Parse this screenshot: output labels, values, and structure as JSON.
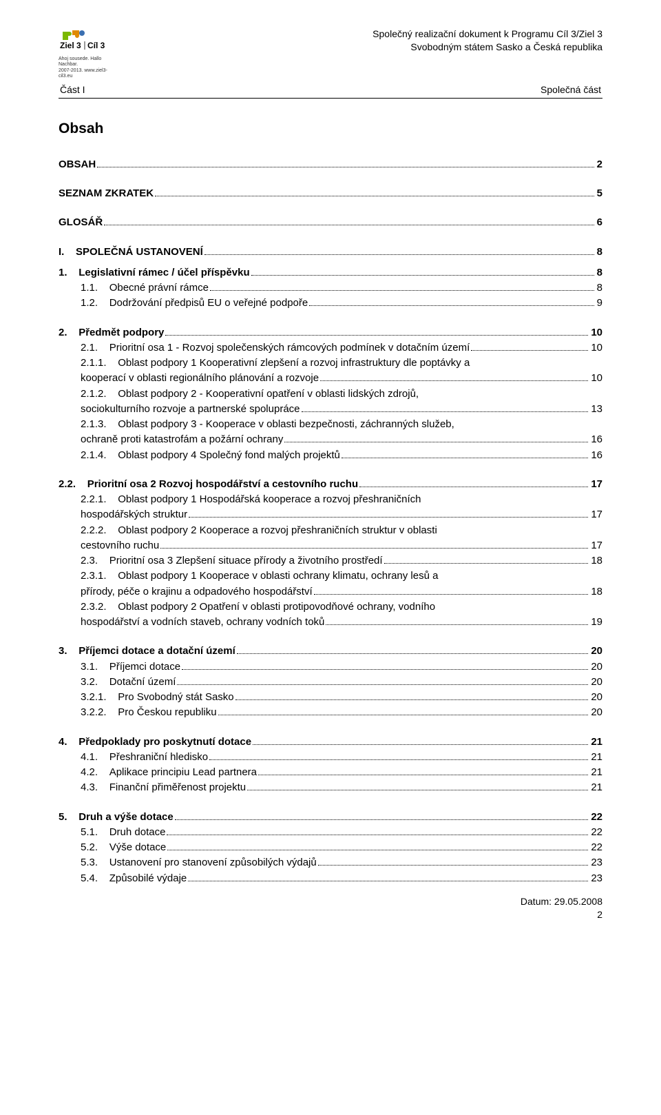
{
  "header": {
    "line1": "Společný realizační dokument k Programu Cíl 3/Ziel 3",
    "line2": "Svobodným státem Sasko  a Česká republika",
    "left": "Část I",
    "right": "Společná část",
    "logo_sub1": "Ahoj sousede. Hallo Nachbar.",
    "logo_sub2": "2007-2013. www.ziel3-cil3.eu",
    "logo_text_ziel": "Ziel 3",
    "logo_text_cil": "Cíl 3"
  },
  "title": "Obsah",
  "toc": [
    {
      "type": "row",
      "bold": true,
      "indent": 0,
      "num": "OBSAH",
      "title": "",
      "page": "2"
    },
    {
      "type": "gap",
      "size": "md"
    },
    {
      "type": "row",
      "bold": true,
      "indent": 0,
      "num": "SEZNAM ZKRATEK",
      "title": "",
      "page": "5"
    },
    {
      "type": "gap",
      "size": "md"
    },
    {
      "type": "row",
      "bold": true,
      "indent": 0,
      "num": "GLOSÁŘ",
      "title": "",
      "page": "6"
    },
    {
      "type": "gap",
      "size": "md"
    },
    {
      "type": "row",
      "bold": true,
      "indent": 0,
      "num": "I.",
      "title": "SPOLEČNÁ USTANOVENÍ",
      "page": "8"
    },
    {
      "type": "gap",
      "size": "sm"
    },
    {
      "type": "row",
      "bold": true,
      "indent": 0,
      "num": "1.",
      "title": "Legislativní rámec / účel příspěvku",
      "page": "8"
    },
    {
      "type": "row",
      "bold": false,
      "indent": 1,
      "num": "1.1.",
      "title": "Obecné právní rámce",
      "page": "8"
    },
    {
      "type": "row",
      "bold": false,
      "indent": 1,
      "num": "1.2.",
      "title": "Dodržování předpisů EU o veřejné podpoře",
      "page": "9"
    },
    {
      "type": "gap",
      "size": "md"
    },
    {
      "type": "row",
      "bold": true,
      "indent": 0,
      "num": "2.",
      "title": "Předmět podpory",
      "page": "10"
    },
    {
      "type": "row",
      "bold": false,
      "indent": 1,
      "num": "2.1.",
      "title": "Prioritní osa 1 - Rozvoj společenských rámcových podmínek v dotačním území",
      "page": "10"
    },
    {
      "type": "multi",
      "bold": false,
      "indent": 1,
      "num": "2.1.1.",
      "lines": [
        "Oblast podpory 1 Kooperativní zlepšení a rozvoj infrastruktury dle poptávky a",
        "kooperací v oblasti regionálního plánování a rozvoje"
      ],
      "page": "10"
    },
    {
      "type": "multi",
      "bold": false,
      "indent": 1,
      "num": "2.1.2.",
      "lines": [
        "Oblast podpory 2 - Kooperativní opatření v oblasti lidských zdrojů,",
        "sociokulturního rozvoje a partnerské spolupráce"
      ],
      "page": "13"
    },
    {
      "type": "multi",
      "bold": false,
      "indent": 1,
      "num": "2.1.3.",
      "lines": [
        "Oblast podpory 3 - Kooperace v oblasti bezpečnosti, záchranných služeb,",
        "ochraně proti katastrofám a požární ochrany"
      ],
      "page": "16"
    },
    {
      "type": "row",
      "bold": false,
      "indent": 1,
      "num": "2.1.4.",
      "title": "Oblast podpory 4 Společný fond malých projektů",
      "page": "16"
    },
    {
      "type": "gap",
      "size": "md"
    },
    {
      "type": "row",
      "bold": true,
      "indent": 0,
      "num": "2.2.",
      "title": "Prioritní osa 2 Rozvoj hospodářství a cestovního ruchu",
      "page": "17"
    },
    {
      "type": "multi",
      "bold": false,
      "indent": 1,
      "num": "2.2.1.",
      "lines": [
        "Oblast podpory 1 Hospodářská kooperace a rozvoj přeshraničních",
        "hospodářských struktur"
      ],
      "page": "17"
    },
    {
      "type": "multi",
      "bold": false,
      "indent": 1,
      "num": "2.2.2.",
      "lines": [
        "Oblast podpory 2 Kooperace a rozvoj přeshraničních struktur v oblasti",
        "cestovního ruchu"
      ],
      "page": "17"
    },
    {
      "type": "row",
      "bold": false,
      "indent": 1,
      "num": "2.3.",
      "title": "Prioritní osa 3 Zlepšení situace přírody a životního prostředí",
      "page": "18"
    },
    {
      "type": "multi",
      "bold": false,
      "indent": 1,
      "num": "2.3.1.",
      "lines": [
        "Oblast podpory 1 Kooperace v oblasti ochrany klimatu, ochrany lesů a",
        "přírody, péče o krajinu a odpadového hospodářství"
      ],
      "page": "18"
    },
    {
      "type": "multi",
      "bold": false,
      "indent": 1,
      "num": "2.3.2.",
      "lines": [
        "Oblast podpory 2 Opatření v oblasti protipovodňové ochrany, vodního",
        "hospodářství a vodních staveb, ochrany vodních toků"
      ],
      "page": "19"
    },
    {
      "type": "gap",
      "size": "md"
    },
    {
      "type": "row",
      "bold": true,
      "indent": 0,
      "num": "3.",
      "title": "Příjemci dotace a dotační území",
      "page": "20"
    },
    {
      "type": "row",
      "bold": false,
      "indent": 1,
      "num": "3.1.",
      "title": "Příjemci dotace",
      "page": "20"
    },
    {
      "type": "row",
      "bold": false,
      "indent": 1,
      "num": "3.2.",
      "title": "Dotační území",
      "page": "20"
    },
    {
      "type": "row",
      "bold": false,
      "indent": 2,
      "num": "3.2.1.",
      "title": "Pro Svobodný stát Sasko",
      "page": "20"
    },
    {
      "type": "row",
      "bold": false,
      "indent": 2,
      "num": "3.2.2.",
      "title": "Pro Českou republiku",
      "page": "20"
    },
    {
      "type": "gap",
      "size": "md"
    },
    {
      "type": "row",
      "bold": true,
      "indent": 0,
      "num": "4.",
      "title": "Předpoklady pro poskytnutí dotace",
      "page": "21"
    },
    {
      "type": "row",
      "bold": false,
      "indent": 1,
      "num": "4.1.",
      "title": "Přeshraniční hledisko",
      "page": "21"
    },
    {
      "type": "row",
      "bold": false,
      "indent": 1,
      "num": "4.2.",
      "title": "Aplikace principiu Lead partnera",
      "page": "21"
    },
    {
      "type": "row",
      "bold": false,
      "indent": 1,
      "num": "4.3.",
      "title": "Finanční přiměřenost projektu",
      "page": "21"
    },
    {
      "type": "gap",
      "size": "md"
    },
    {
      "type": "row",
      "bold": true,
      "indent": 0,
      "num": "5.",
      "title": "Druh a výše dotace",
      "page": "22"
    },
    {
      "type": "row",
      "bold": false,
      "indent": 1,
      "num": "5.1.",
      "title": "Druh dotace",
      "page": "22"
    },
    {
      "type": "row",
      "bold": false,
      "indent": 1,
      "num": "5.2.",
      "title": "Výše dotace",
      "page": "22"
    },
    {
      "type": "row",
      "bold": false,
      "indent": 1,
      "num": "5.3.",
      "title": "Ustanovení pro stanovení způsobilých výdajů",
      "page": "23"
    },
    {
      "type": "row",
      "bold": false,
      "indent": 1,
      "num": "5.4.",
      "title": "Způsobilé výdaje",
      "page": "23"
    }
  ],
  "footer": {
    "date": "Datum: 29.05.2008",
    "page": "2"
  },
  "colors": {
    "text": "#000000",
    "bg": "#ffffff",
    "logo_green": "#7bb800",
    "logo_orange": "#e08a00",
    "logo_blue": "#3b6fb0",
    "logo_divider": "#333333"
  }
}
